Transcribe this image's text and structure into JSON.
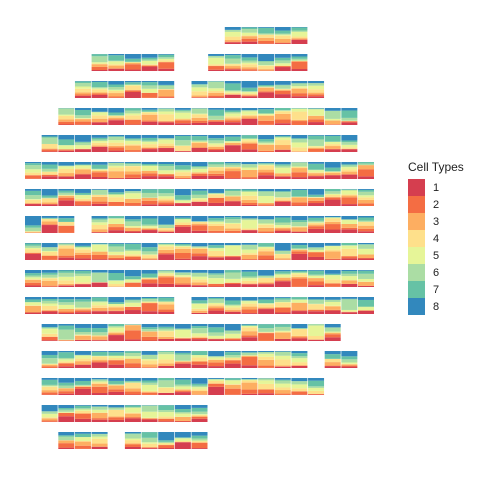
{
  "chart_data": {
    "type": "stacked-bar grid (spatial pie-like cell type composition per spot)",
    "legend_title": "Cell Types",
    "legend_position": "right",
    "cell_types": [
      "1",
      "2",
      "3",
      "4",
      "5",
      "6",
      "7",
      "8"
    ],
    "colors": [
      "#d53e4f",
      "#f46d43",
      "#fdae61",
      "#fee08b",
      "#e6f598",
      "#abdda4",
      "#66c2a5",
      "#3288bd"
    ],
    "grid": {
      "rows": 16,
      "cols": 21,
      "row_col_ranges": [
        [
          12,
          16
        ],
        [
          4,
          8,
          11,
          16
        ],
        [
          3,
          8,
          10,
          17
        ],
        [
          2,
          9,
          10,
          19
        ],
        [
          1,
          10,
          11,
          19
        ],
        [
          0,
          20
        ],
        [
          0,
          20
        ],
        [
          0,
          2,
          4,
          20
        ],
        [
          0,
          20
        ],
        [
          0,
          20
        ],
        [
          0,
          8,
          10,
          20
        ],
        [
          1,
          18
        ],
        [
          1,
          16,
          18,
          19
        ],
        [
          1,
          17
        ],
        [
          1,
          10
        ],
        [
          2,
          4,
          6,
          10
        ]
      ]
    }
  }
}
